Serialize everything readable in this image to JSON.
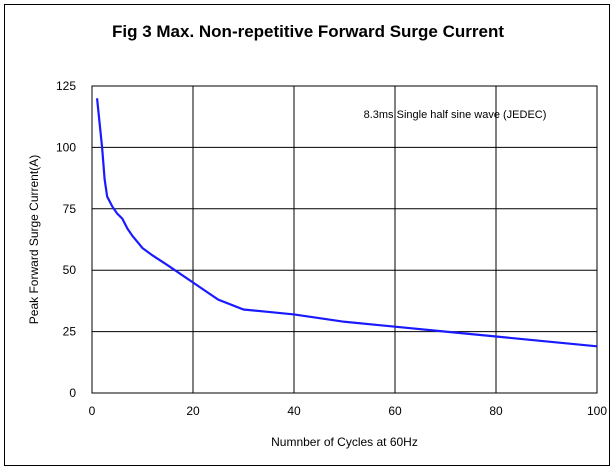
{
  "chart_data": {
    "type": "line",
    "title": "Fig 3 Max. Non-repetitive Forward Surge Current",
    "xlabel": "Numnber of Cycles at 60Hz",
    "ylabel": "Peak Forward Surge Current(A)",
    "annotation": "8.3ms Single half sine wave (JEDEC)",
    "xlim": [
      0,
      100
    ],
    "ylim": [
      0,
      125
    ],
    "x_ticks": [
      0,
      20,
      40,
      60,
      80,
      100
    ],
    "y_ticks": [
      0,
      25,
      50,
      75,
      100,
      125
    ],
    "grid": true,
    "line_color": "#1a1aff",
    "series": [
      {
        "x": [
          1,
          1.5,
          2,
          2.5,
          3,
          4,
          5,
          6,
          7,
          8,
          10,
          12,
          15,
          20,
          25,
          30,
          35,
          40,
          50,
          60,
          70,
          80,
          90,
          100
        ],
        "y": [
          120,
          110,
          100,
          87,
          80,
          76,
          73,
          71,
          67,
          64,
          59,
          56,
          52,
          45,
          38,
          34,
          33,
          32,
          29,
          27,
          25,
          23,
          21,
          19
        ]
      }
    ]
  }
}
